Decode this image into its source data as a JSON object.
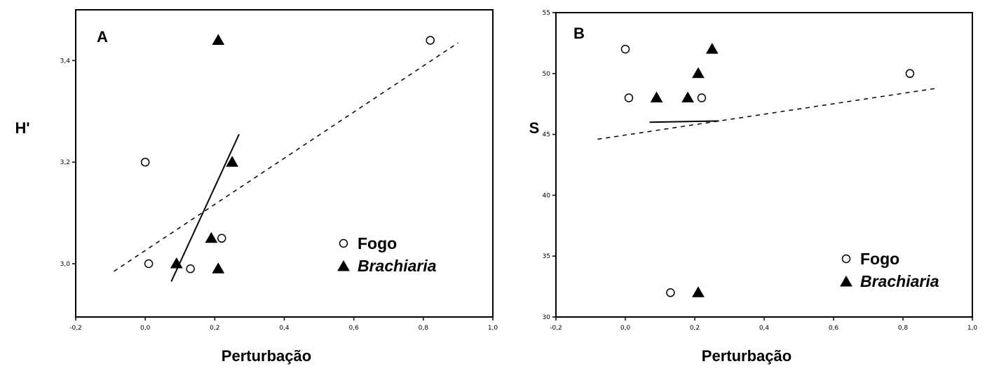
{
  "chart_data": [
    {
      "type": "scatter",
      "panel_label": "A",
      "xlabel": "Perturbação",
      "ylabel": "H'",
      "xlim": [
        -0.2,
        1.0
      ],
      "ylim": [
        2.895,
        3.5
      ],
      "xticks": [
        -0.2,
        0.0,
        0.2,
        0.4,
        0.6,
        0.8,
        1.0
      ],
      "xtick_labels": [
        "-0,2",
        "0,0",
        "0,2",
        "0,4",
        "0,6",
        "0,8",
        "1,0"
      ],
      "yticks": [
        3.0,
        3.2,
        3.4
      ],
      "ytick_labels": [
        "3,0",
        "3,2",
        "3,4"
      ],
      "legend_position": "bottom-right",
      "series": [
        {
          "name": "Fogo",
          "marker": "open-circle",
          "x": [
            0.0,
            0.01,
            0.13,
            0.22,
            0.82
          ],
          "y": [
            3.2,
            3.0,
            2.99,
            3.05,
            3.44
          ]
        },
        {
          "name": "Brachiaria",
          "marker": "filled-triangle",
          "x": [
            0.09,
            0.19,
            0.21,
            0.25,
            0.21
          ],
          "y": [
            3.0,
            3.05,
            2.99,
            3.2,
            3.44
          ]
        }
      ],
      "fit_lines": [
        {
          "series": "Fogo",
          "style": "dashed",
          "x": [
            -0.09,
            0.9
          ],
          "y": [
            2.985,
            3.435
          ]
        },
        {
          "series": "Brachiaria",
          "style": "solid",
          "x": [
            0.075,
            0.27
          ],
          "y": [
            2.965,
            3.255
          ]
        }
      ]
    },
    {
      "type": "scatter",
      "panel_label": "B",
      "xlabel": "Perturbação",
      "ylabel": "S",
      "xlim": [
        -0.2,
        1.0
      ],
      "ylim": [
        30,
        55
      ],
      "xticks": [
        -0.2,
        0.0,
        0.2,
        0.4,
        0.6,
        0.8,
        1.0
      ],
      "xtick_labels": [
        "-0,2",
        "0,0",
        "0,2",
        "0,4",
        "0,6",
        "0,8",
        "1,0"
      ],
      "yticks": [
        30,
        35,
        40,
        45,
        50,
        55
      ],
      "ytick_labels": [
        "30",
        "35",
        "40",
        "45",
        "50",
        "55"
      ],
      "legend_position": "bottom-right",
      "series": [
        {
          "name": "Fogo",
          "marker": "open-circle",
          "x": [
            0.0,
            0.01,
            0.22,
            0.13,
            0.82
          ],
          "y": [
            52,
            48,
            48,
            32,
            50
          ]
        },
        {
          "name": "Brachiaria",
          "marker": "filled-triangle",
          "x": [
            0.09,
            0.18,
            0.21,
            0.25,
            0.21
          ],
          "y": [
            48,
            48,
            50,
            52,
            32
          ]
        }
      ],
      "fit_lines": [
        {
          "series": "Fogo",
          "style": "dashed",
          "x": [
            -0.08,
            0.9
          ],
          "y": [
            44.6,
            48.8
          ]
        },
        {
          "series": "Brachiaria",
          "style": "solid",
          "x": [
            0.07,
            0.27
          ],
          "y": [
            46.0,
            46.1
          ]
        }
      ]
    }
  ]
}
